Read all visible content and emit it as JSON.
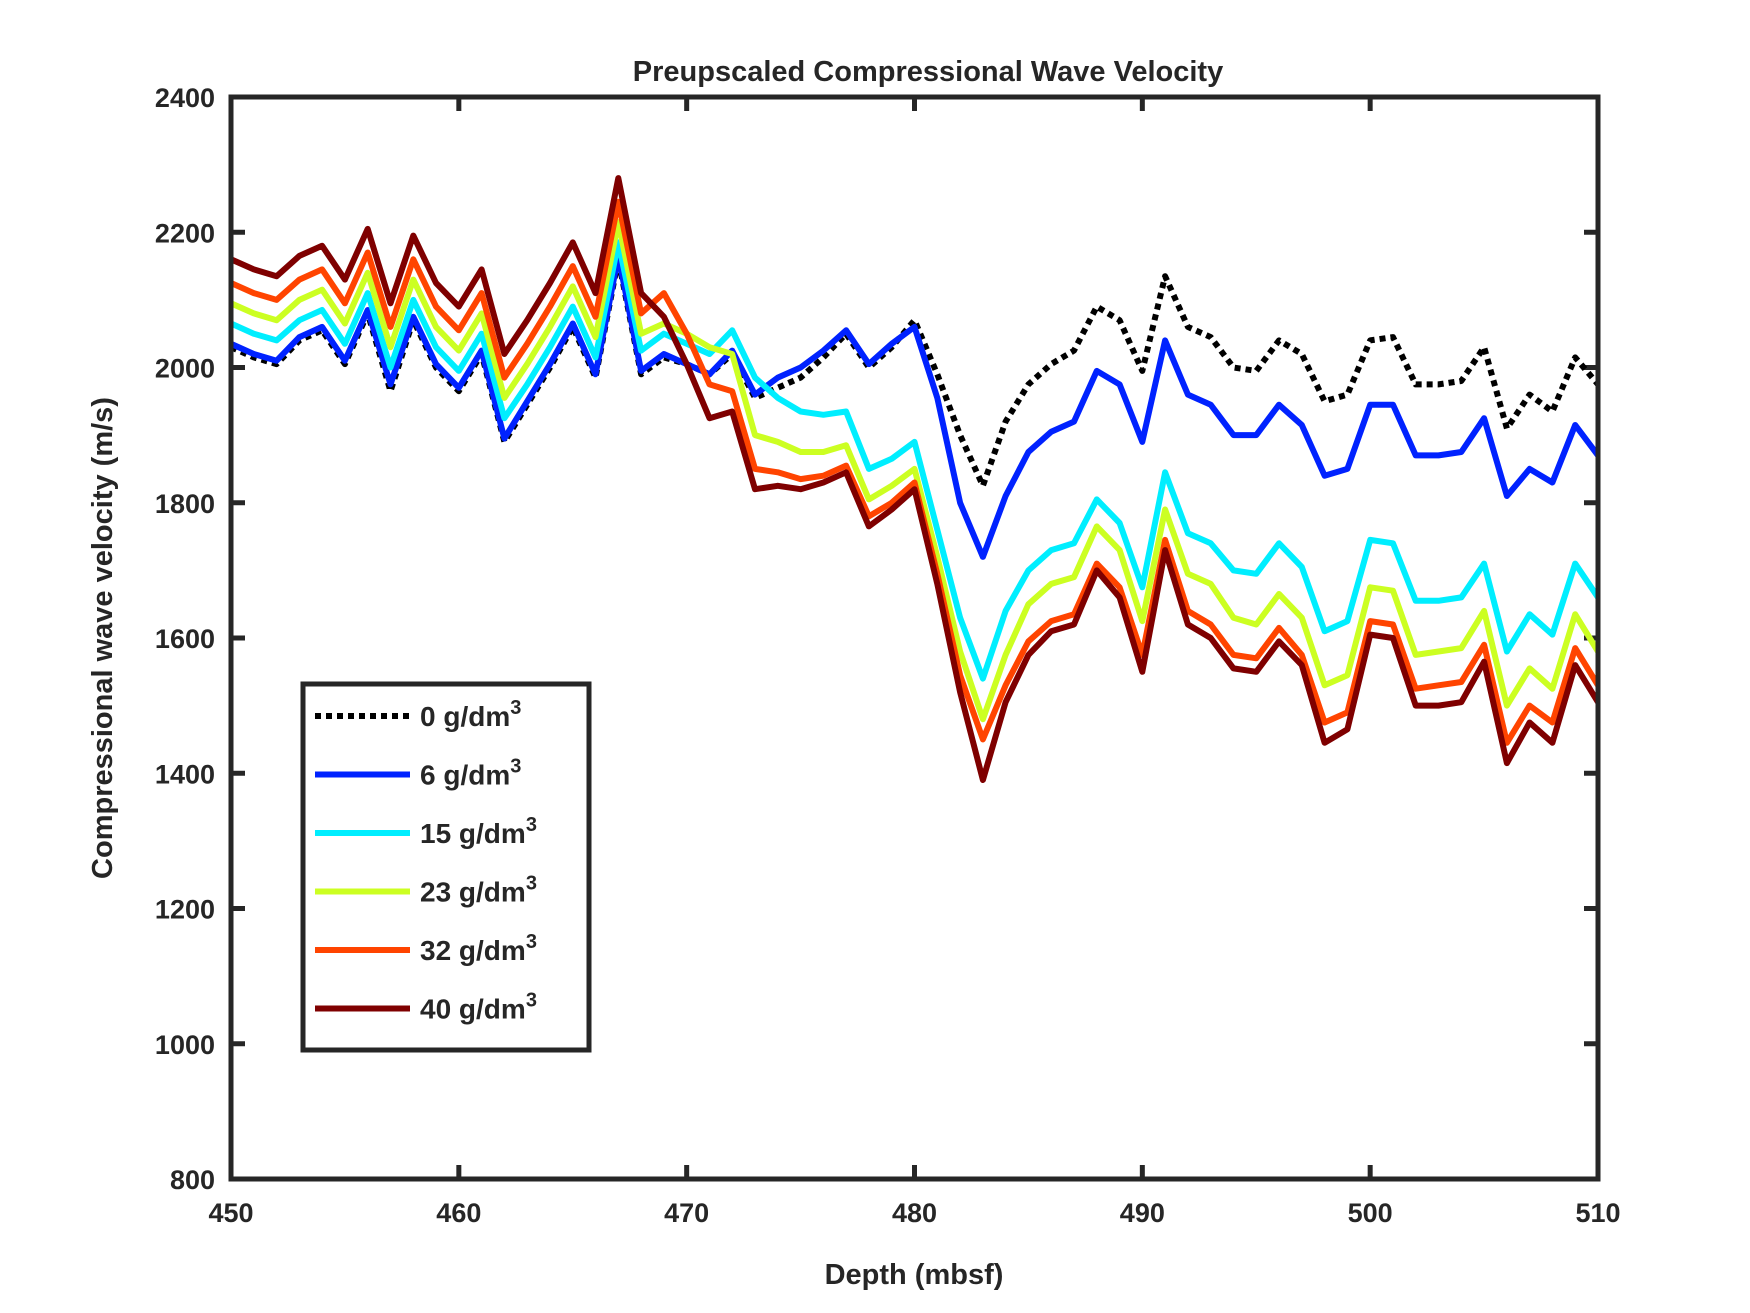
{
  "chart_data": {
    "type": "line",
    "title": "Preupscaled Compressional Wave Velocity",
    "xlabel": "Depth (mbsf)",
    "ylabel": "Compressional wave velocity (m/s)",
    "xlim": [
      450,
      510
    ],
    "ylim": [
      800,
      2400
    ],
    "xticks": [
      450,
      460,
      470,
      480,
      490,
      500,
      510
    ],
    "yticks": [
      800,
      1000,
      1200,
      1400,
      1600,
      1800,
      2000,
      2200,
      2400
    ],
    "grid": false,
    "legend_position": "lower-left",
    "x": [
      450,
      451,
      452,
      453,
      454,
      455,
      456,
      457,
      458,
      459,
      460,
      461,
      462,
      463,
      464,
      465,
      466,
      467,
      468,
      469,
      470,
      471,
      472,
      473,
      474,
      475,
      476,
      477,
      478,
      479,
      480,
      481,
      482,
      483,
      484,
      485,
      486,
      487,
      488,
      489,
      490,
      491,
      492,
      493,
      494,
      495,
      496,
      497,
      498,
      499,
      500,
      501,
      502,
      503,
      504,
      505,
      506,
      507,
      508,
      509,
      510
    ],
    "series": [
      {
        "name": "0 g/dm",
        "sup": "3",
        "color": "#000000",
        "dash": "dotted",
        "values": [
          2030,
          2015,
          2005,
          2040,
          2055,
          2005,
          2080,
          1965,
          2070,
          2000,
          1965,
          2020,
          1890,
          1945,
          2000,
          2060,
          1985,
          2160,
          1990,
          2015,
          2005,
          1990,
          2020,
          1955,
          1970,
          1985,
          2015,
          2050,
          2000,
          2030,
          2070,
          1990,
          1900,
          1825,
          1920,
          1975,
          2005,
          2025,
          2090,
          2070,
          1995,
          2135,
          2060,
          2045,
          2000,
          1995,
          2040,
          2020,
          1950,
          1960,
          2040,
          2045,
          1975,
          1975,
          1980,
          2030,
          1910,
          1960,
          1935,
          2015,
          1975
        ]
      },
      {
        "name": "6 g/dm",
        "sup": "3",
        "color": "#0022ff",
        "dash": "solid",
        "values": [
          2035,
          2020,
          2010,
          2045,
          2060,
          2010,
          2085,
          1975,
          2075,
          2005,
          1970,
          2025,
          1895,
          1950,
          2005,
          2065,
          1990,
          2165,
          1995,
          2020,
          2005,
          1990,
          2025,
          1960,
          1985,
          2000,
          2025,
          2055,
          2005,
          2035,
          2060,
          1955,
          1800,
          1720,
          1810,
          1875,
          1905,
          1920,
          1995,
          1975,
          1890,
          2040,
          1960,
          1945,
          1900,
          1900,
          1945,
          1915,
          1840,
          1850,
          1945,
          1945,
          1870,
          1870,
          1875,
          1925,
          1810,
          1850,
          1830,
          1915,
          1870
        ]
      },
      {
        "name": "15 g/dm",
        "sup": "3",
        "color": "#00eeff",
        "dash": "solid",
        "values": [
          2065,
          2050,
          2040,
          2070,
          2085,
          2035,
          2110,
          2000,
          2100,
          2030,
          1995,
          2050,
          1925,
          1975,
          2030,
          2090,
          2015,
          2185,
          2025,
          2050,
          2035,
          2020,
          2055,
          1985,
          1955,
          1935,
          1930,
          1935,
          1850,
          1865,
          1890,
          1760,
          1630,
          1540,
          1640,
          1700,
          1730,
          1740,
          1805,
          1770,
          1675,
          1845,
          1755,
          1740,
          1700,
          1695,
          1740,
          1705,
          1610,
          1625,
          1745,
          1740,
          1655,
          1655,
          1660,
          1710,
          1580,
          1635,
          1605,
          1710,
          1660
        ]
      },
      {
        "name": "23 g/dm",
        "sup": "3",
        "color": "#ccff22",
        "dash": "solid",
        "values": [
          2095,
          2080,
          2070,
          2100,
          2115,
          2065,
          2140,
          2030,
          2130,
          2060,
          2025,
          2080,
          1955,
          2005,
          2060,
          2120,
          2045,
          2215,
          2050,
          2065,
          2050,
          2030,
          2020,
          1900,
          1890,
          1875,
          1875,
          1885,
          1805,
          1825,
          1850,
          1720,
          1580,
          1480,
          1575,
          1650,
          1680,
          1690,
          1765,
          1730,
          1625,
          1790,
          1695,
          1680,
          1630,
          1620,
          1665,
          1630,
          1530,
          1545,
          1675,
          1670,
          1575,
          1580,
          1585,
          1640,
          1500,
          1555,
          1525,
          1635,
          1580
        ]
      },
      {
        "name": "32 g/dm",
        "sup": "3",
        "color": "#ff4400",
        "dash": "solid",
        "values": [
          2125,
          2110,
          2100,
          2130,
          2145,
          2095,
          2170,
          2060,
          2160,
          2090,
          2055,
          2110,
          1985,
          2035,
          2090,
          2150,
          2075,
          2245,
          2080,
          2110,
          2050,
          1975,
          1965,
          1850,
          1845,
          1835,
          1840,
          1855,
          1780,
          1800,
          1830,
          1695,
          1545,
          1450,
          1530,
          1595,
          1625,
          1635,
          1710,
          1675,
          1575,
          1745,
          1640,
          1620,
          1575,
          1570,
          1615,
          1575,
          1475,
          1490,
          1625,
          1620,
          1525,
          1530,
          1535,
          1590,
          1445,
          1500,
          1475,
          1585,
          1530
        ]
      },
      {
        "name": "40 g/dm",
        "sup": "3",
        "color": "#7f0000",
        "dash": "solid",
        "values": [
          2160,
          2145,
          2135,
          2165,
          2180,
          2130,
          2205,
          2095,
          2195,
          2125,
          2090,
          2145,
          2020,
          2070,
          2125,
          2185,
          2110,
          2280,
          2110,
          2075,
          2005,
          1925,
          1935,
          1820,
          1825,
          1820,
          1830,
          1845,
          1765,
          1790,
          1820,
          1680,
          1520,
          1390,
          1505,
          1575,
          1610,
          1620,
          1700,
          1660,
          1550,
          1730,
          1620,
          1600,
          1555,
          1550,
          1595,
          1560,
          1445,
          1465,
          1605,
          1600,
          1500,
          1500,
          1505,
          1565,
          1415,
          1475,
          1445,
          1560,
          1505
        ]
      }
    ]
  }
}
